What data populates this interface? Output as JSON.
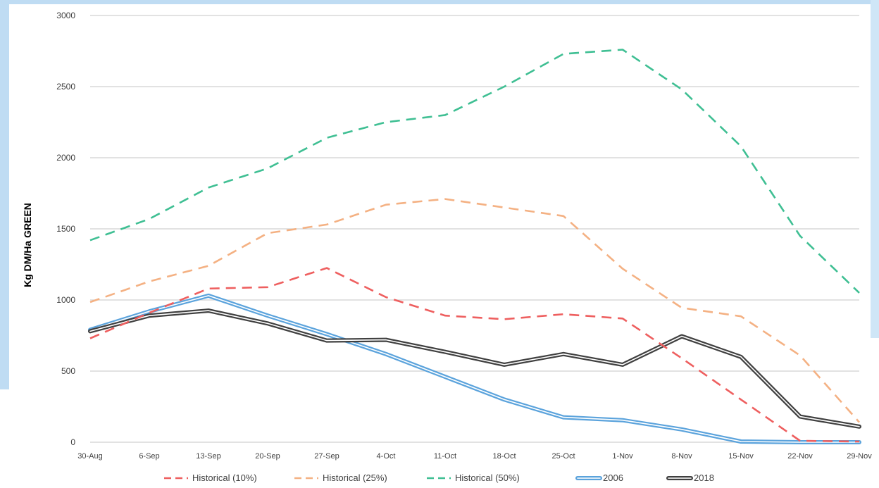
{
  "chart_data": {
    "type": "line",
    "title": "",
    "xlabel": "",
    "ylabel": "Kg DM/Ha GREEN",
    "ylim": [
      0,
      3000
    ],
    "yticks": [
      0,
      500,
      1000,
      1500,
      2000,
      2500,
      3000
    ],
    "grid": true,
    "legend_position": "bottom",
    "categories": [
      "30-Aug",
      "6-Sep",
      "13-Sep",
      "20-Sep",
      "27-Sep",
      "4-Oct",
      "11-Oct",
      "18-Oct",
      "25-Oct",
      "1-Nov",
      "8-Nov",
      "15-Nov",
      "22-Nov",
      "29-Nov"
    ],
    "series": [
      {
        "name": "Historical (10%)",
        "color": "#ee5f5f",
        "style": "dashed",
        "values": [
          730,
          910,
          1080,
          1090,
          1225,
          1020,
          890,
          865,
          900,
          870,
          590,
          300,
          10,
          5
        ]
      },
      {
        "name": "Historical (25%)",
        "color": "#f4b183",
        "style": "dashed",
        "values": [
          985,
          1130,
          1240,
          1470,
          1530,
          1670,
          1710,
          1650,
          1590,
          1220,
          945,
          885,
          610,
          140
        ]
      },
      {
        "name": "Historical (50%)",
        "color": "#3fbf93",
        "style": "dashed",
        "values": [
          1420,
          1570,
          1790,
          1925,
          2140,
          2250,
          2300,
          2500,
          2730,
          2760,
          2480,
          2080,
          1450,
          1050
        ]
      },
      {
        "name": "2006",
        "color": "#5ba3dc",
        "style": "double",
        "values": [
          790,
          920,
          1030,
          890,
          760,
          620,
          460,
          300,
          175,
          155,
          90,
          5,
          0,
          0
        ]
      },
      {
        "name": "2018",
        "color": "#404040",
        "style": "double",
        "values": [
          780,
          890,
          925,
          835,
          715,
          720,
          635,
          545,
          620,
          545,
          745,
          600,
          180,
          110
        ]
      }
    ]
  }
}
